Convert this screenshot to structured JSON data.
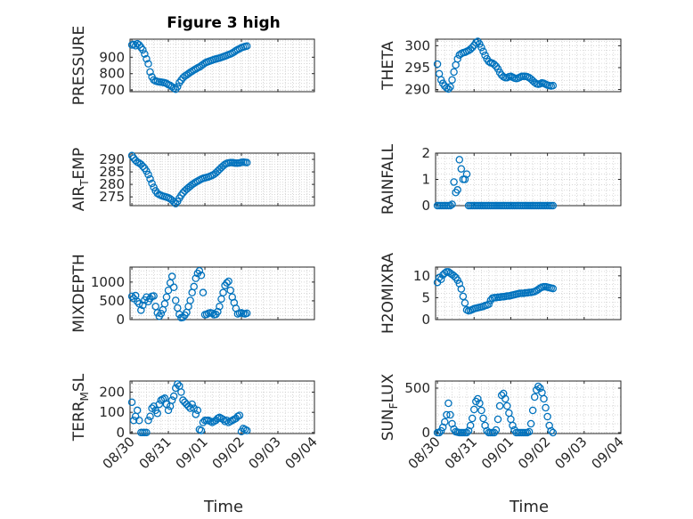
{
  "figure": {
    "title": "Figure 3 high",
    "xlabel": "Time"
  },
  "chart_data": [
    {
      "type": "scatter",
      "panel": "top-left",
      "title": "Figure 3 high",
      "ylabel": "PRESSURE",
      "ylim": [
        690,
        1010
      ],
      "yticks": [
        700,
        800,
        900
      ],
      "ytick_labels": [
        "700",
        "800",
        "900"
      ],
      "x": [
        0.0,
        0.05,
        0.1,
        0.15,
        0.2,
        0.25,
        0.3,
        0.35,
        0.4,
        0.45,
        0.5,
        0.55,
        0.6,
        0.65,
        0.7,
        0.75,
        0.8,
        0.85,
        0.9,
        0.95,
        1.0,
        1.05,
        1.1,
        1.15,
        1.2,
        1.25,
        1.3,
        1.35,
        1.4,
        1.45,
        1.5,
        1.55,
        1.6,
        1.65,
        1.7,
        1.75,
        1.8,
        1.85,
        1.9,
        1.95,
        2.0,
        2.05,
        2.1,
        2.15,
        2.2,
        2.25,
        2.3,
        2.35,
        2.4,
        2.45,
        2.5,
        2.55,
        2.6,
        2.65,
        2.7,
        2.75,
        2.8,
        2.85,
        2.9,
        2.95,
        3.0,
        3.05,
        3.1,
        3.15
      ],
      "y": [
        975,
        978,
        970,
        982,
        975,
        960,
        945,
        920,
        890,
        860,
        810,
        780,
        762,
        755,
        752,
        750,
        748,
        746,
        744,
        740,
        733,
        728,
        720,
        712,
        705,
        720,
        745,
        760,
        775,
        785,
        792,
        800,
        808,
        815,
        822,
        828,
        835,
        840,
        848,
        856,
        864,
        870,
        874,
        878,
        882,
        886,
        889,
        892,
        895,
        899,
        903,
        907,
        911,
        916,
        920,
        925,
        932,
        940,
        946,
        952,
        958,
        962,
        965,
        968
      ]
    },
    {
      "type": "scatter",
      "panel": "top-right",
      "ylabel": "THETA",
      "ylim": [
        289.5,
        301.5
      ],
      "yticks": [
        290,
        295,
        300
      ],
      "ytick_labels": [
        "290",
        "295",
        "300"
      ],
      "x": [
        0.0,
        0.05,
        0.1,
        0.15,
        0.2,
        0.25,
        0.3,
        0.35,
        0.4,
        0.45,
        0.5,
        0.55,
        0.6,
        0.65,
        0.7,
        0.75,
        0.8,
        0.85,
        0.9,
        0.95,
        1.0,
        1.05,
        1.1,
        1.15,
        1.2,
        1.25,
        1.3,
        1.35,
        1.4,
        1.45,
        1.5,
        1.55,
        1.6,
        1.65,
        1.7,
        1.75,
        1.8,
        1.85,
        1.9,
        1.95,
        2.0,
        2.05,
        2.1,
        2.15,
        2.2,
        2.25,
        2.3,
        2.35,
        2.4,
        2.45,
        2.5,
        2.55,
        2.6,
        2.65,
        2.7,
        2.75,
        2.8,
        2.85,
        2.9,
        2.95,
        3.0,
        3.05,
        3.1,
        3.15
      ],
      "y": [
        295.8,
        293.6,
        292.2,
        291.4,
        290.8,
        290.4,
        290.1,
        290.6,
        292.2,
        294.0,
        295.6,
        297.0,
        297.9,
        298.2,
        298.4,
        298.5,
        298.7,
        298.9,
        299.2,
        299.6,
        300.1,
        300.7,
        301.0,
        300.4,
        299.6,
        298.7,
        297.8,
        297.0,
        296.4,
        296.1,
        296.0,
        295.7,
        295.3,
        294.7,
        293.9,
        293.3,
        292.9,
        292.7,
        292.7,
        292.9,
        293.0,
        292.8,
        292.6,
        292.5,
        292.6,
        292.8,
        293.0,
        293.0,
        293.0,
        292.9,
        292.7,
        292.4,
        292.0,
        291.6,
        291.3,
        291.2,
        291.3,
        291.5,
        291.4,
        291.2,
        291.0,
        290.9,
        290.8,
        290.9
      ]
    },
    {
      "type": "scatter",
      "panel": "row2-left",
      "ylabel_main": "AIR",
      "ylabel_sub": "T",
      "ylabel_rest": "EMP",
      "ylim": [
        271.5,
        292.5
      ],
      "yticks": [
        275,
        280,
        285,
        290
      ],
      "ytick_labels": [
        "275",
        "280",
        "285",
        "290"
      ],
      "x": [
        0.0,
        0.05,
        0.1,
        0.15,
        0.2,
        0.25,
        0.3,
        0.35,
        0.4,
        0.45,
        0.5,
        0.55,
        0.6,
        0.65,
        0.7,
        0.75,
        0.8,
        0.85,
        0.9,
        0.95,
        1.0,
        1.05,
        1.1,
        1.15,
        1.2,
        1.25,
        1.3,
        1.35,
        1.4,
        1.45,
        1.5,
        1.55,
        1.6,
        1.65,
        1.7,
        1.75,
        1.8,
        1.85,
        1.9,
        1.95,
        2.0,
        2.05,
        2.1,
        2.15,
        2.2,
        2.25,
        2.3,
        2.35,
        2.4,
        2.45,
        2.5,
        2.55,
        2.6,
        2.65,
        2.7,
        2.75,
        2.8,
        2.85,
        2.9,
        2.95,
        3.0,
        3.05,
        3.1,
        3.15
      ],
      "y": [
        291.5,
        290.5,
        289.6,
        288.9,
        288.5,
        288.0,
        287.2,
        286.4,
        285.3,
        283.9,
        282.2,
        280.4,
        278.8,
        277.4,
        276.4,
        275.9,
        275.6,
        275.3,
        275.1,
        274.9,
        274.6,
        274.2,
        273.7,
        273.0,
        272.3,
        273.2,
        274.5,
        275.6,
        276.6,
        277.4,
        278.1,
        278.7,
        279.3,
        279.9,
        280.4,
        280.9,
        281.3,
        281.7,
        282.1,
        282.4,
        282.6,
        282.8,
        283.0,
        283.3,
        283.6,
        284.0,
        284.6,
        285.3,
        286.0,
        286.7,
        287.4,
        288.0,
        288.4,
        288.6,
        288.7,
        288.7,
        288.6,
        288.5,
        288.5,
        288.6,
        288.8,
        288.9,
        288.8,
        288.7
      ]
    },
    {
      "type": "scatter",
      "panel": "row2-right",
      "ylabel": "RAINFALL",
      "ylim": [
        0,
        2
      ],
      "yticks": [
        0,
        1,
        2
      ],
      "ytick_labels": [
        "0",
        "1",
        "2"
      ],
      "x": [
        0.0,
        0.05,
        0.1,
        0.15,
        0.2,
        0.25,
        0.3,
        0.35,
        0.4,
        0.45,
        0.5,
        0.55,
        0.6,
        0.65,
        0.7,
        0.75,
        0.8,
        0.85,
        0.9,
        0.95,
        1.0,
        1.05,
        1.1,
        1.15,
        1.2,
        1.25,
        1.3,
        1.35,
        1.4,
        1.45,
        1.5,
        1.55,
        1.6,
        1.65,
        1.7,
        1.75,
        1.8,
        1.85,
        1.9,
        1.95,
        2.0,
        2.05,
        2.1,
        2.15,
        2.2,
        2.25,
        2.3,
        2.35,
        2.4,
        2.45,
        2.5,
        2.55,
        2.6,
        2.65,
        2.7,
        2.75,
        2.8,
        2.85,
        2.9,
        2.95,
        3.0,
        3.05,
        3.1,
        3.15
      ],
      "y": [
        0,
        0,
        0,
        0,
        0,
        0,
        0,
        0,
        0.05,
        0.9,
        0.5,
        0.6,
        1.75,
        1.4,
        1.0,
        1.0,
        1.2,
        0,
        0,
        0,
        0,
        0,
        0,
        0,
        0,
        0,
        0,
        0,
        0,
        0,
        0,
        0,
        0,
        0,
        0,
        0,
        0,
        0,
        0,
        0,
        0,
        0,
        0,
        0,
        0,
        0,
        0,
        0,
        0,
        0,
        0,
        0,
        0,
        0,
        0,
        0,
        0,
        0,
        0,
        0,
        0,
        0,
        0,
        0
      ]
    },
    {
      "type": "scatter",
      "panel": "row3-left",
      "ylabel": "MIXDEPTH",
      "ylim": [
        0,
        1400
      ],
      "yticks": [
        0,
        500,
        1000
      ],
      "ytick_labels": [
        "0",
        "500",
        "1000"
      ],
      "x": [
        0.0,
        0.05,
        0.1,
        0.15,
        0.2,
        0.25,
        0.3,
        0.35,
        0.4,
        0.45,
        0.5,
        0.55,
        0.6,
        0.65,
        0.7,
        0.75,
        0.8,
        0.85,
        0.9,
        0.95,
        1.0,
        1.05,
        1.1,
        1.15,
        1.2,
        1.25,
        1.3,
        1.35,
        1.4,
        1.45,
        1.5,
        1.55,
        1.6,
        1.65,
        1.7,
        1.75,
        1.8,
        1.85,
        1.9,
        1.95,
        2.0,
        2.05,
        2.1,
        2.15,
        2.2,
        2.25,
        2.3,
        2.35,
        2.4,
        2.45,
        2.5,
        2.55,
        2.6,
        2.65,
        2.7,
        2.75,
        2.8,
        2.85,
        2.9,
        2.95,
        3.0,
        3.05,
        3.1,
        3.15
      ],
      "y": [
        620,
        560,
        640,
        480,
        420,
        250,
        380,
        520,
        600,
        480,
        560,
        620,
        630,
        350,
        180,
        90,
        160,
        260,
        420,
        600,
        780,
        980,
        1150,
        860,
        510,
        310,
        140,
        50,
        60,
        120,
        190,
        350,
        510,
        720,
        880,
        1100,
        1230,
        1300,
        1180,
        720,
        130,
        140,
        170,
        180,
        170,
        130,
        140,
        210,
        350,
        550,
        720,
        910,
        980,
        1020,
        780,
        600,
        450,
        300,
        150,
        170,
        180,
        160,
        150,
        170
      ]
    },
    {
      "type": "scatter",
      "panel": "row3-right",
      "ylabel": "H2OMIXRA",
      "ylim": [
        0,
        12
      ],
      "yticks": [
        0,
        5,
        10
      ],
      "ytick_labels": [
        "0",
        "5",
        "10"
      ],
      "x": [
        0.0,
        0.05,
        0.1,
        0.15,
        0.2,
        0.25,
        0.3,
        0.35,
        0.4,
        0.45,
        0.5,
        0.55,
        0.6,
        0.65,
        0.7,
        0.75,
        0.8,
        0.85,
        0.9,
        0.95,
        1.0,
        1.05,
        1.1,
        1.15,
        1.2,
        1.25,
        1.3,
        1.35,
        1.4,
        1.45,
        1.5,
        1.55,
        1.6,
        1.65,
        1.7,
        1.75,
        1.8,
        1.85,
        1.9,
        1.95,
        2.0,
        2.05,
        2.1,
        2.15,
        2.2,
        2.25,
        2.3,
        2.35,
        2.4,
        2.45,
        2.5,
        2.55,
        2.6,
        2.65,
        2.7,
        2.75,
        2.8,
        2.85,
        2.9,
        2.95,
        3.0,
        3.05,
        3.1,
        3.15
      ],
      "y": [
        8.5,
        9.6,
        9.2,
        10.2,
        10.6,
        10.9,
        10.9,
        10.6,
        10.3,
        10.0,
        9.6,
        9.0,
        8.2,
        7.0,
        5.3,
        3.8,
        2.2,
        2.0,
        2.1,
        2.3,
        2.5,
        2.6,
        2.7,
        2.8,
        2.9,
        3.0,
        3.2,
        3.3,
        3.5,
        4.4,
        4.9,
        5.0,
        5.0,
        5.1,
        5.1,
        5.2,
        5.2,
        5.3,
        5.4,
        5.4,
        5.5,
        5.6,
        5.7,
        5.8,
        5.9,
        6.0,
        6.0,
        6.0,
        6.1,
        6.1,
        6.2,
        6.2,
        6.3,
        6.4,
        6.6,
        6.9,
        7.2,
        7.4,
        7.5,
        7.5,
        7.4,
        7.3,
        7.2,
        7.1
      ]
    },
    {
      "type": "scatter",
      "panel": "bottom-left",
      "ylabel_main": "TERR",
      "ylabel_sub": "M",
      "ylabel_rest": "SL",
      "ylim": [
        -5,
        255
      ],
      "yticks": [
        0,
        100,
        200
      ],
      "ytick_labels": [
        "0",
        "100",
        "200"
      ],
      "xticks": [
        0,
        1,
        2,
        3,
        4,
        5
      ],
      "xtick_labels": [
        "08/30",
        "08/31",
        "09/01",
        "09/02",
        "09/03",
        "09/04"
      ],
      "x": [
        0.0,
        0.05,
        0.1,
        0.15,
        0.2,
        0.25,
        0.3,
        0.35,
        0.4,
        0.45,
        0.5,
        0.55,
        0.6,
        0.65,
        0.7,
        0.75,
        0.8,
        0.85,
        0.9,
        0.95,
        1.0,
        1.05,
        1.1,
        1.15,
        1.2,
        1.25,
        1.3,
        1.35,
        1.4,
        1.45,
        1.5,
        1.55,
        1.6,
        1.65,
        1.7,
        1.75,
        1.8,
        1.85,
        1.9,
        1.95,
        2.0,
        2.05,
        2.1,
        2.15,
        2.2,
        2.25,
        2.3,
        2.35,
        2.4,
        2.45,
        2.5,
        2.55,
        2.6,
        2.65,
        2.7,
        2.75,
        2.8,
        2.85,
        2.9,
        2.95,
        3.0,
        3.05,
        3.1,
        3.15
      ],
      "y": [
        150,
        60,
        80,
        110,
        60,
        0,
        0,
        0,
        0,
        60,
        80,
        120,
        130,
        110,
        95,
        140,
        160,
        165,
        170,
        140,
        110,
        130,
        160,
        180,
        220,
        240,
        230,
        200,
        160,
        150,
        140,
        130,
        120,
        140,
        120,
        90,
        110,
        15,
        10,
        50,
        60,
        60,
        60,
        55,
        50,
        55,
        60,
        70,
        75,
        70,
        65,
        55,
        60,
        50,
        55,
        60,
        65,
        70,
        80,
        85,
        5,
        20,
        15,
        10
      ]
    },
    {
      "type": "scatter",
      "panel": "bottom-right",
      "ylabel_main": "SUN",
      "ylabel_sub": "F",
      "ylabel_rest": "LUX",
      "ylim": [
        -10,
        580
      ],
      "yticks": [
        0,
        500
      ],
      "ytick_labels": [
        "0",
        "500"
      ],
      "xticks": [
        0,
        1,
        2,
        3,
        4,
        5
      ],
      "xtick_labels": [
        "08/30",
        "08/31",
        "09/01",
        "09/02",
        "09/03",
        "09/04"
      ],
      "x": [
        0.0,
        0.05,
        0.1,
        0.15,
        0.2,
        0.25,
        0.3,
        0.35,
        0.4,
        0.45,
        0.5,
        0.55,
        0.6,
        0.65,
        0.7,
        0.75,
        0.8,
        0.85,
        0.9,
        0.95,
        1.0,
        1.05,
        1.1,
        1.15,
        1.2,
        1.25,
        1.3,
        1.35,
        1.4,
        1.45,
        1.5,
        1.55,
        1.6,
        1.65,
        1.7,
        1.75,
        1.8,
        1.85,
        1.9,
        1.95,
        2.0,
        2.05,
        2.1,
        2.15,
        2.2,
        2.25,
        2.3,
        2.35,
        2.4,
        2.45,
        2.5,
        2.55,
        2.6,
        2.65,
        2.7,
        2.75,
        2.8,
        2.85,
        2.9,
        2.95,
        3.0,
        3.05,
        3.1,
        3.15
      ],
      "y": [
        0,
        0,
        20,
        60,
        120,
        200,
        330,
        200,
        100,
        40,
        10,
        5,
        0,
        0,
        0,
        0,
        0,
        20,
        80,
        160,
        260,
        350,
        380,
        330,
        250,
        160,
        80,
        20,
        0,
        0,
        0,
        0,
        30,
        150,
        300,
        420,
        440,
        380,
        300,
        220,
        150,
        80,
        30,
        0,
        0,
        0,
        0,
        0,
        0,
        0,
        10,
        100,
        250,
        400,
        480,
        520,
        500,
        450,
        380,
        280,
        180,
        80,
        20,
        0
      ]
    }
  ]
}
